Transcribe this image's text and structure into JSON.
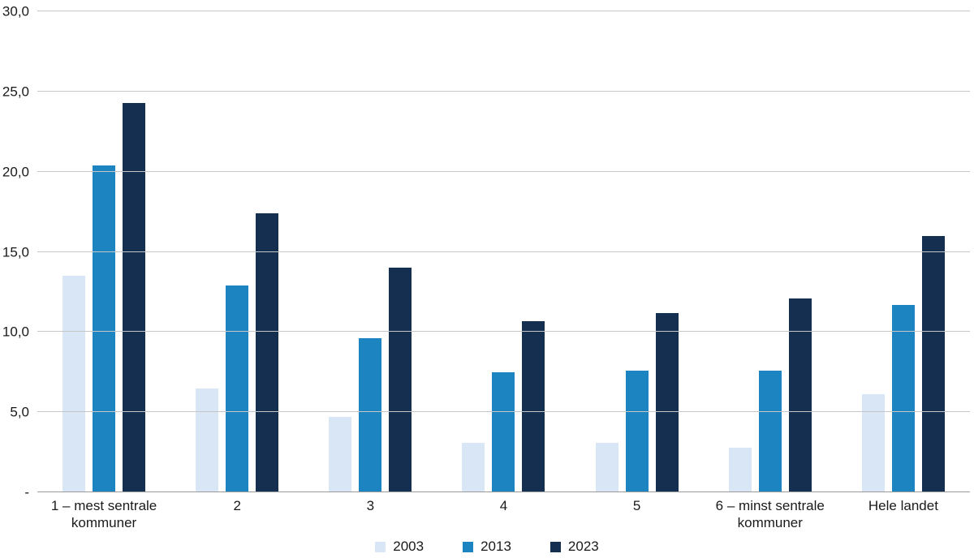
{
  "chart_data": {
    "type": "bar",
    "categories": [
      "1 – mest sentrale kommuner",
      "2",
      "3",
      "4",
      "5",
      "6 – minst sentrale kommuner",
      "Hele landet"
    ],
    "series": [
      {
        "name": "2003",
        "color": "#d9e6f5",
        "values": [
          13.5,
          6.5,
          4.7,
          3.1,
          3.1,
          2.8,
          6.1
        ]
      },
      {
        "name": "2013",
        "color": "#1b84c1",
        "values": [
          20.4,
          12.9,
          9.6,
          7.5,
          7.6,
          7.6,
          11.7
        ]
      },
      {
        "name": "2023",
        "color": "#142f4f",
        "values": [
          24.3,
          17.4,
          14.0,
          10.7,
          11.2,
          12.1,
          16.0
        ]
      }
    ],
    "title": "",
    "xlabel": "",
    "ylabel": "",
    "ylim": [
      0,
      30
    ],
    "yticks": [
      30,
      25,
      20,
      15,
      10,
      5,
      0
    ],
    "ytick_labels": [
      "30,0",
      "25,0",
      "20,0",
      "15,0",
      "10,0",
      "5,0",
      "-"
    ],
    "grid": true,
    "legend_position": "bottom",
    "colors": {
      "gridline": "#c6c6c6",
      "baseline": "#9b9b9b",
      "text": "#1a1a1a",
      "background": "#ffffff"
    }
  }
}
